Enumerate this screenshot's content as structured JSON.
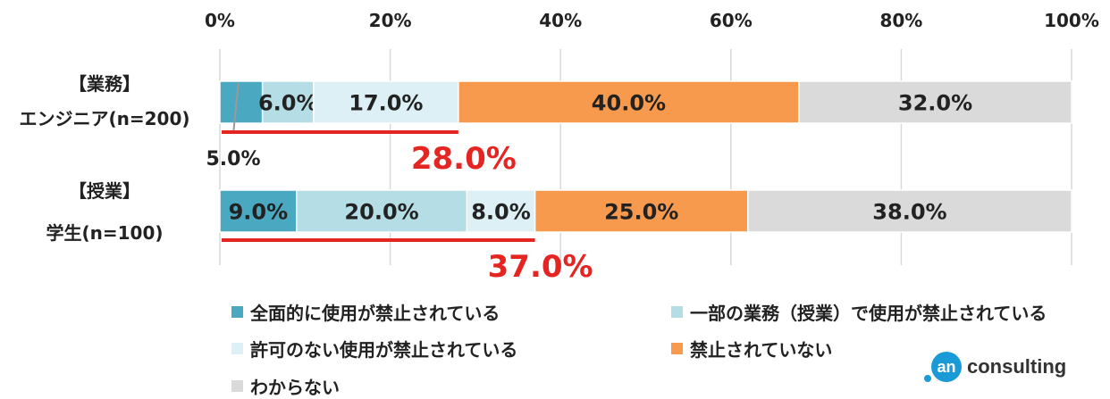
{
  "chart_data": {
    "type": "bar",
    "orientation": "horizontal",
    "stacked": true,
    "xlim": [
      0,
      100
    ],
    "xticks": [
      "0%",
      "20%",
      "40%",
      "60%",
      "80%",
      "100%"
    ],
    "xtick_values": [
      0,
      20,
      40,
      60,
      80,
      100
    ],
    "grid": "vertical",
    "categories": [
      {
        "line1": "【業務】",
        "line2": "エンジニア(n=200)"
      },
      {
        "line1": "【授業】",
        "line2": "学生(n=100)"
      }
    ],
    "series": [
      {
        "name": "全面的に使用が禁止されている",
        "color": "#4ba8c1",
        "values": [
          5.0,
          9.0
        ],
        "labels": [
          "5.0%",
          "9.0%"
        ]
      },
      {
        "name": "一部の業務（授業）で使用が禁止されている",
        "color": "#b5dde6",
        "values": [
          6.0,
          20.0
        ],
        "labels": [
          "6.0%",
          "20.0%"
        ]
      },
      {
        "name": "許可のない使用が禁止されている",
        "color": "#dcf0f5",
        "values": [
          17.0,
          8.0
        ],
        "labels": [
          "17.0%",
          "8.0%"
        ]
      },
      {
        "name": "禁止されていない",
        "color": "#f79a4d",
        "values": [
          40.0,
          25.0
        ],
        "labels": [
          "40.0%",
          "25.0%"
        ]
      },
      {
        "name": "わからない",
        "color": "#dadada",
        "values": [
          32.0,
          38.0
        ],
        "labels": [
          "32.0%",
          "38.0%"
        ]
      }
    ],
    "brackets": [
      {
        "from": 0,
        "to": 28.0,
        "label": "28.0%",
        "color": "#e52521"
      },
      {
        "from": 0,
        "to": 37.0,
        "label": "37.0%",
        "color": "#e52521"
      }
    ]
  },
  "logo": {
    "mark": "an",
    "text": "consulting"
  }
}
